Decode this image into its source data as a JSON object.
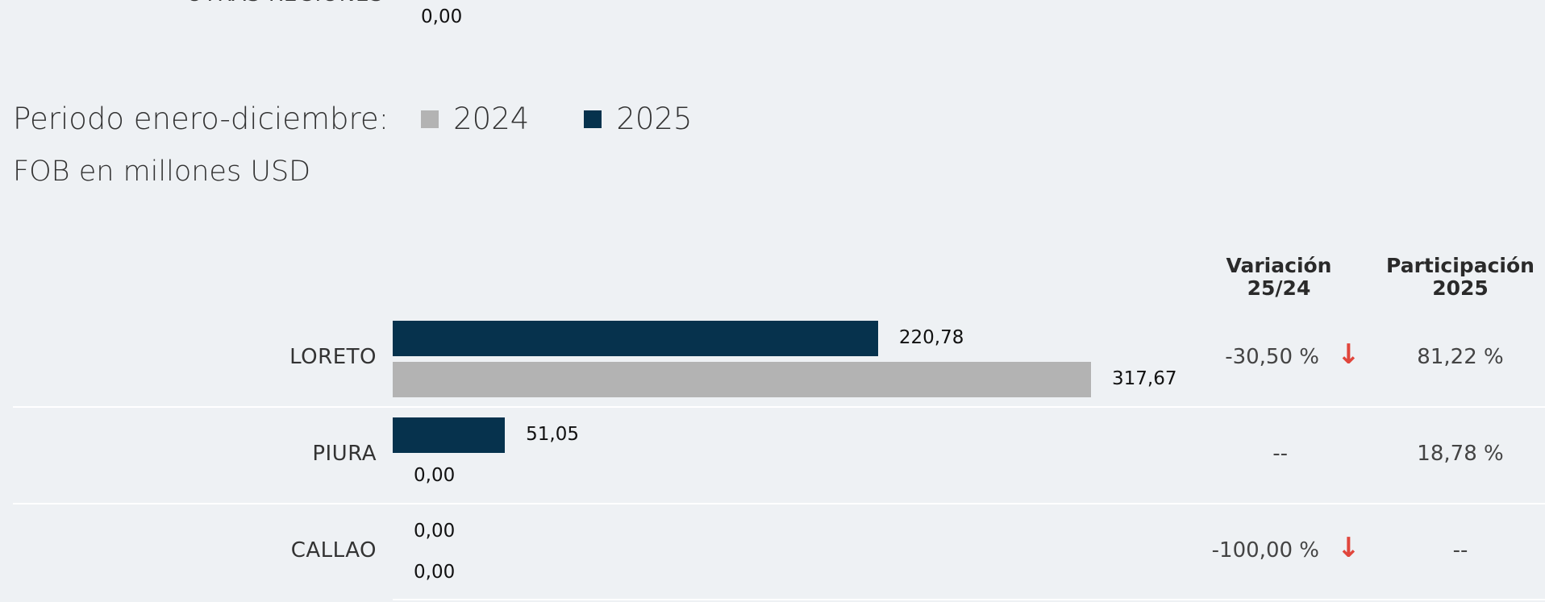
{
  "previous_row": {
    "label": "OTRAS REGIONES",
    "value_label": "0,00"
  },
  "legend": {
    "title": "Periodo enero-diciembre:",
    "items": [
      {
        "label": "2024",
        "color": "#b3b3b3"
      },
      {
        "label": "2025",
        "color": "#06324d"
      }
    ]
  },
  "subtitle": "FOB en millones USD",
  "columns": {
    "variation": {
      "line1": "Variación",
      "line2": "25/24"
    },
    "participation": {
      "line1": "Participación",
      "line2": "2025"
    }
  },
  "chart_data": {
    "type": "bar",
    "orientation": "horizontal",
    "categories": [
      "LORETO",
      "PIURA",
      "CALLAO"
    ],
    "series": [
      {
        "name": "2025",
        "color": "#06324d",
        "values": [
          220.78,
          51.05,
          0.0
        ],
        "labels": [
          "220,78",
          "51,05",
          "0,00"
        ]
      },
      {
        "name": "2024",
        "color": "#b3b3b3",
        "values": [
          317.67,
          0.0,
          0.0
        ],
        "labels": [
          "317,67",
          "0,00",
          "0,00"
        ]
      }
    ],
    "xlim": [
      0,
      317.67
    ],
    "grid": false,
    "legend_position": "top-left",
    "variation": [
      {
        "text": "-30,50 %",
        "direction": "down"
      },
      {
        "text": "--",
        "direction": "none"
      },
      {
        "text": "-100,00 %",
        "direction": "down"
      }
    ],
    "participation": [
      "81,22 %",
      "18,78 %",
      "--"
    ]
  }
}
